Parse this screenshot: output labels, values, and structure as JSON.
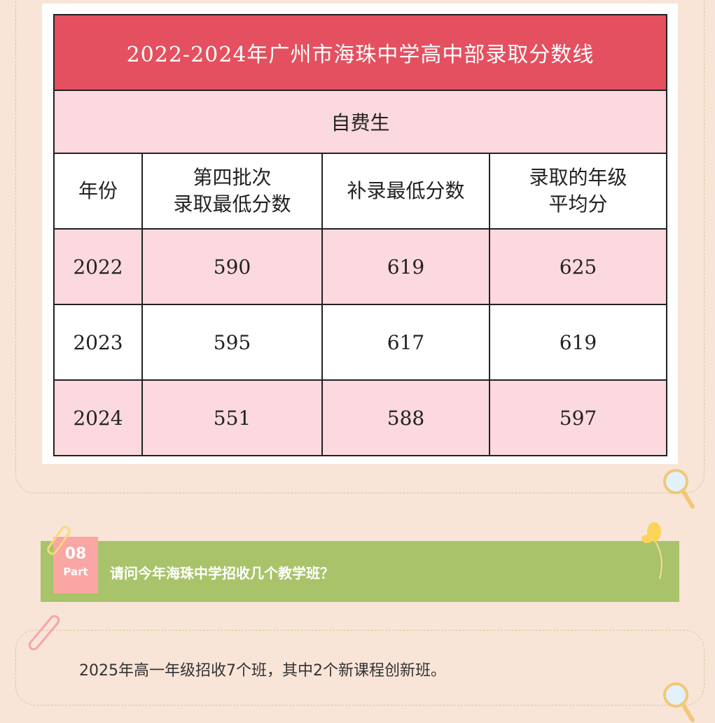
{
  "table": {
    "title": "2022-2024年广州市海珠中学高中部录取分数线",
    "subtitle": "自费生",
    "headers": [
      "年份",
      "第四批次\n录取最低分数",
      "补录最低分数",
      "录取的年级\n平均分"
    ],
    "rows": [
      [
        "2022",
        "590",
        "619",
        "625"
      ],
      [
        "2023",
        "595",
        "617",
        "619"
      ],
      [
        "2024",
        "551",
        "588",
        "597"
      ]
    ]
  },
  "section": {
    "number": "08",
    "part_label": "Part",
    "question": "请问今年海珠中学招收几个教学班？"
  },
  "answer": "2025年高一年级招收7个班，其中2个新课程创新班。",
  "colors": {
    "background": "#f9e4d8",
    "title_red": "#e4505f",
    "row_pink": "#fbd9de",
    "banner_green": "#a8c36a",
    "tag_pink": "#f9a6a4"
  }
}
